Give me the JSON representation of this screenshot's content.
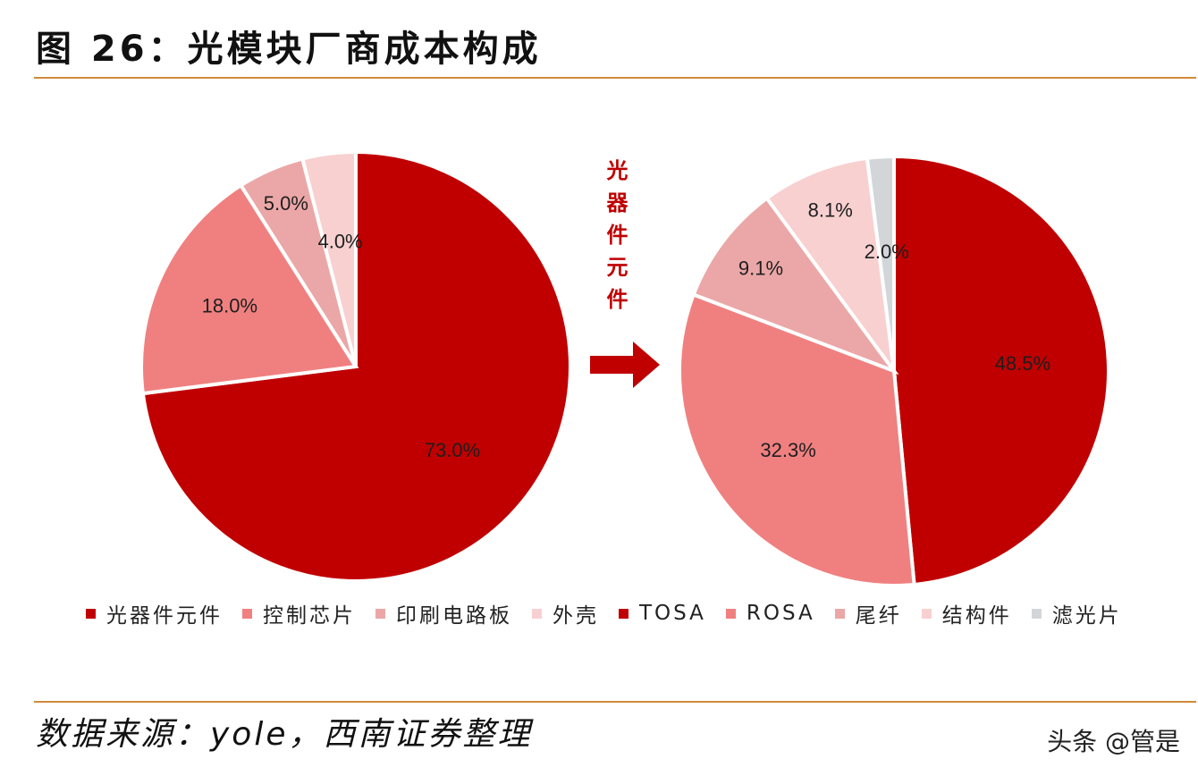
{
  "title": "图 26：光模块厂商成本构成",
  "middle_label": "光器件元件",
  "source": "数据来源：yole，西南证券整理",
  "watermark": "头条 @管是",
  "legend": [
    {
      "label": "光器件元件",
      "color": "#c00000"
    },
    {
      "label": "控制芯片",
      "color": "#f08080"
    },
    {
      "label": "印刷电路板",
      "color": "#eba7a7"
    },
    {
      "label": "外壳",
      "color": "#f8d0d0"
    },
    {
      "label": "TOSA",
      "color": "#c00000"
    },
    {
      "label": "ROSA",
      "color": "#f08080"
    },
    {
      "label": "尾纤",
      "color": "#eba7a7"
    },
    {
      "label": "结构件",
      "color": "#f8d0d0"
    },
    {
      "label": "滤光片",
      "color": "#d3d6d9"
    }
  ],
  "chart_data": [
    {
      "type": "pie",
      "start": "12 o'clock, clockwise",
      "categories": [
        "光器件元件",
        "控制芯片",
        "印刷电路板",
        "外壳"
      ],
      "values": [
        73.0,
        18.0,
        5.0,
        4.0
      ],
      "labels": [
        "73.0%",
        "18.0%",
        "5.0%",
        "4.0%"
      ],
      "colors": [
        "#c00000",
        "#f08080",
        "#eba7a7",
        "#f8d0d0"
      ]
    },
    {
      "type": "pie",
      "start": "12 o'clock, clockwise",
      "categories": [
        "TOSA",
        "ROSA",
        "尾纤",
        "结构件",
        "滤光片"
      ],
      "values": [
        48.5,
        32.3,
        9.1,
        8.1,
        2.0
      ],
      "labels": [
        "48.5%",
        "32.3%",
        "9.1%",
        "8.1%",
        "2.0%"
      ],
      "colors": [
        "#c00000",
        "#f08080",
        "#eba7a7",
        "#f8d0d0",
        "#d3d6d9"
      ]
    }
  ]
}
